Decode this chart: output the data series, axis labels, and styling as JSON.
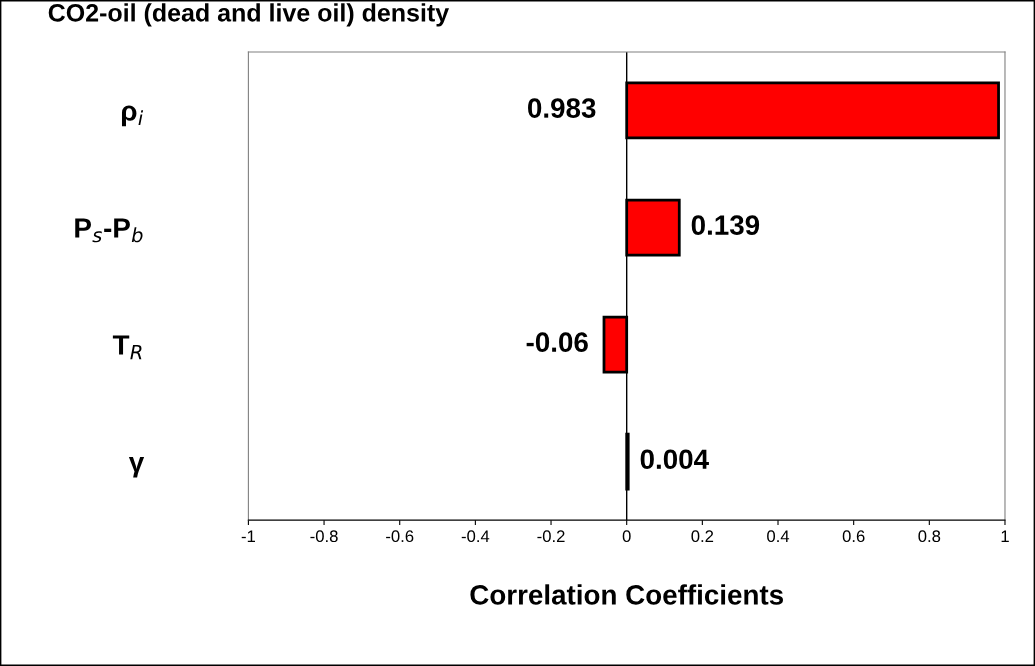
{
  "chart_data": {
    "type": "bar",
    "orientation": "horizontal",
    "title": "CO2-oil (dead and live oil) density",
    "xlabel": "Correlation Coefficients",
    "categories": [
      "ρ$_{i}$",
      "P$_{s}$-P$_{b}$",
      "T$_{R}$",
      "γ"
    ],
    "values": [
      0.983,
      0.139,
      -0.06,
      0.004
    ],
    "color": "#ff0000",
    "data_labels": true,
    "xlim": [
      -1,
      1
    ],
    "xticks": [
      -1,
      -0.8,
      -0.6,
      -0.4,
      -0.2,
      0,
      0.2,
      0.4,
      0.6,
      0.8,
      1
    ],
    "ref_lines": [
      {
        "axis": "x",
        "value": 0,
        "color": "#000000"
      }
    ],
    "grid": false,
    "legend": false
  }
}
